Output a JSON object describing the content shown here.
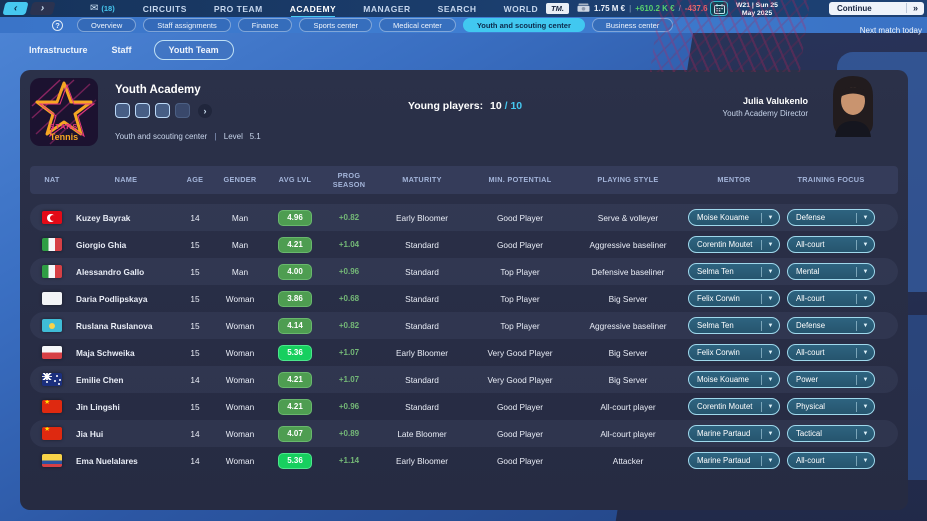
{
  "colors": {
    "accent_cyan": "#41c8f0",
    "badge_green": "#4e9d51",
    "badge_bright_green": "#17cf5f",
    "prog_green": "#74b877",
    "income_green": "#58d06e",
    "expense_red": "#e86a6a"
  },
  "icons": {
    "back": "‹",
    "forward": "›",
    "mail": "✉",
    "help": "?",
    "dropdown_arrow": "▼",
    "slot_chevron": "›",
    "continue_chevrons": "»"
  },
  "top_nav": {
    "mail_count": "(18)",
    "items": [
      "CIRCUITS",
      "PRO TEAM",
      "ACADEMY",
      "MANAGER",
      "SEARCH",
      "WORLD"
    ],
    "active_item": "ACADEMY",
    "tm_logo": "TM.",
    "finance": {
      "balance": "1.75 M €",
      "divider": "|",
      "income": "+610.2 K €",
      "slash": "/",
      "expense": "-437.6 K €"
    },
    "date_line1": "W21 | Sun 25",
    "date_line2": "May 2025",
    "continue_label": "Continue",
    "next_match": "Next match today"
  },
  "section_tabs": {
    "items": [
      "Overview",
      "Staff assignments",
      "Finance",
      "Sports center",
      "Medical center",
      "Youth and scouting center",
      "Business center"
    ],
    "active": "Youth and scouting center"
  },
  "sub_tabs": {
    "items": [
      "Infrastructure",
      "Staff",
      "Youth Team"
    ],
    "active": "Youth Team"
  },
  "academy": {
    "title": "Youth Academy",
    "club_line1": "STARS",
    "club_line2": "Tennis",
    "slots": [
      "on",
      "on",
      "on",
      "off"
    ],
    "facility": "Youth and scouting center",
    "facility_divider": "|",
    "level_label": "Level",
    "level_value": "5.1",
    "young_label": "Young players:",
    "young_current": "10",
    "young_sep": "/",
    "young_max": "10",
    "director_name": "Julia Valukenlo",
    "director_role": "Youth Academy Director"
  },
  "table": {
    "headers": [
      "NAT",
      "NAME",
      "AGE",
      "GENDER",
      "AVG LVL",
      "PROG\nSEASON",
      "MATURITY",
      "MIN. POTENTIAL",
      "PLAYING STYLE",
      "MENTOR",
      "TRAINING FOCUS"
    ],
    "rows": [
      {
        "nat": "turkey",
        "name": "Kuzey Bayrak",
        "age": "14",
        "gender": "Man",
        "avg_lvl": "4.96",
        "avg_tier": "normal",
        "prog": "+0.82",
        "maturity": "Early Bloomer",
        "potential": "Good Player",
        "style": "Serve & volleyer",
        "mentor": "Moise Kouame",
        "focus": "Defense"
      },
      {
        "nat": "italy",
        "name": "Giorgio Ghia",
        "age": "15",
        "gender": "Man",
        "avg_lvl": "4.21",
        "avg_tier": "normal",
        "prog": "+1.04",
        "maturity": "Standard",
        "potential": "Good Player",
        "style": "Aggressive baseliner",
        "mentor": "Corentin Moutet",
        "focus": "All-court"
      },
      {
        "nat": "italy",
        "name": "Alessandro Gallo",
        "age": "15",
        "gender": "Man",
        "avg_lvl": "4.00",
        "avg_tier": "normal",
        "prog": "+0.96",
        "maturity": "Standard",
        "potential": "Top Player",
        "style": "Defensive baseliner",
        "mentor": "Selma Ten",
        "focus": "Mental"
      },
      {
        "nat": "white",
        "name": "Daria Podlipskaya",
        "age": "15",
        "gender": "Woman",
        "avg_lvl": "3.86",
        "avg_tier": "normal",
        "prog": "+0.68",
        "maturity": "Standard",
        "potential": "Top Player",
        "style": "Big Server",
        "mentor": "Felix Corwin",
        "focus": "All-court"
      },
      {
        "nat": "kazakhstan",
        "name": "Ruslana Ruslanova",
        "age": "15",
        "gender": "Woman",
        "avg_lvl": "4.14",
        "avg_tier": "normal",
        "prog": "+0.82",
        "maturity": "Standard",
        "potential": "Top Player",
        "style": "Aggressive baseliner",
        "mentor": "Selma Ten",
        "focus": "Defense"
      },
      {
        "nat": "poland",
        "name": "Maja Schweika",
        "age": "15",
        "gender": "Woman",
        "avg_lvl": "5.36",
        "avg_tier": "high",
        "prog": "+1.07",
        "maturity": "Early Bloomer",
        "potential": "Very Good Player",
        "style": "Big Server",
        "mentor": "Felix Corwin",
        "focus": "All-court"
      },
      {
        "nat": "australia",
        "name": "Emilie Chen",
        "age": "14",
        "gender": "Woman",
        "avg_lvl": "4.21",
        "avg_tier": "normal",
        "prog": "+1.07",
        "maturity": "Standard",
        "potential": "Very Good Player",
        "style": "Big Server",
        "mentor": "Moise Kouame",
        "focus": "Power"
      },
      {
        "nat": "china",
        "name": "Jin Lingshi",
        "age": "15",
        "gender": "Woman",
        "avg_lvl": "4.21",
        "avg_tier": "normal",
        "prog": "+0.96",
        "maturity": "Standard",
        "potential": "Good Player",
        "style": "All-court player",
        "mentor": "Corentin Moutet",
        "focus": "Physical"
      },
      {
        "nat": "china",
        "name": "Jia Hui",
        "age": "14",
        "gender": "Woman",
        "avg_lvl": "4.07",
        "avg_tier": "normal",
        "prog": "+0.89",
        "maturity": "Late Bloomer",
        "potential": "Good Player",
        "style": "All-court player",
        "mentor": "Marine Partaud",
        "focus": "Tactical"
      },
      {
        "nat": "colombia",
        "name": "Ema Nuelalares",
        "age": "14",
        "gender": "Woman",
        "avg_lvl": "5.36",
        "avg_tier": "high",
        "prog": "+1.14",
        "maturity": "Early Bloomer",
        "potential": "Good Player",
        "style": "Attacker",
        "mentor": "Marine Partaud",
        "focus": "All-court"
      }
    ]
  }
}
